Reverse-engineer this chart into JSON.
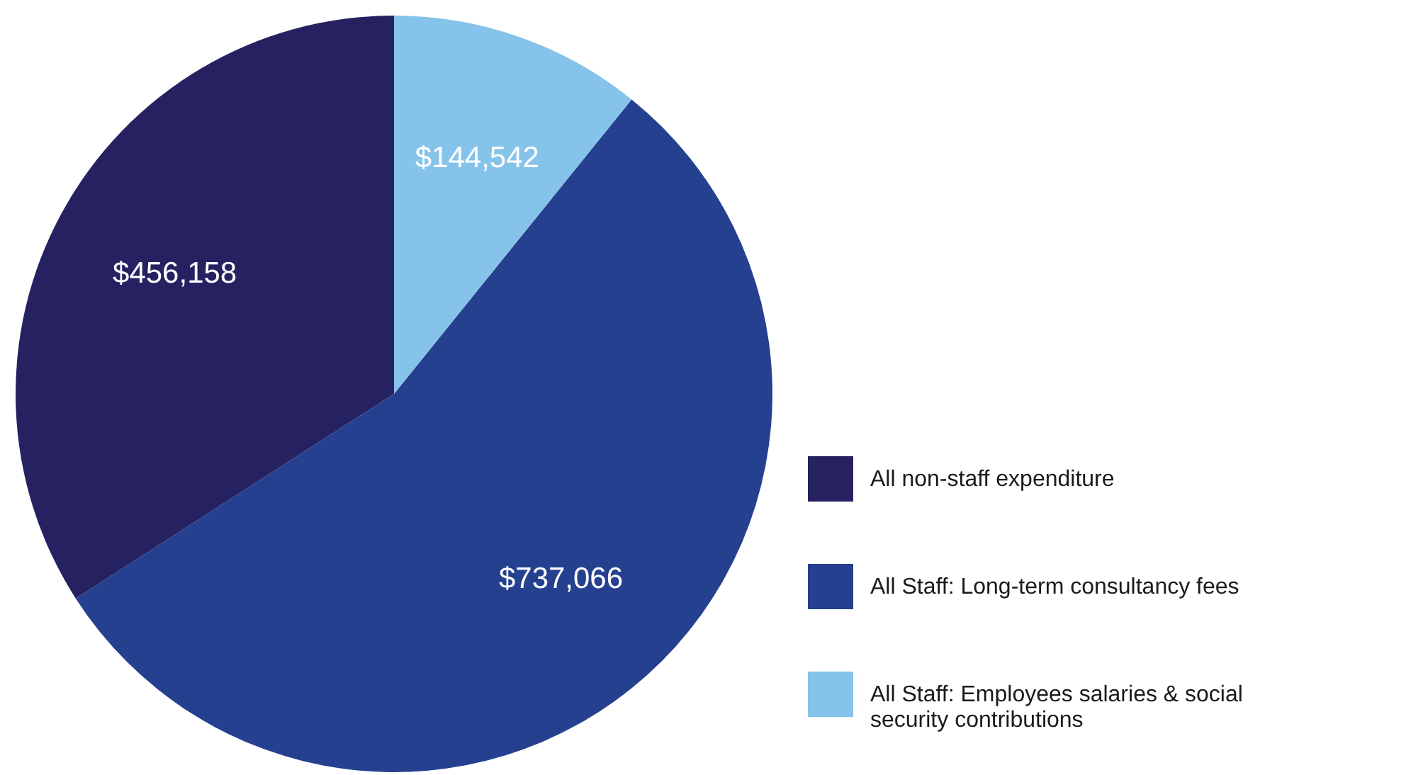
{
  "chart_data": {
    "type": "pie",
    "categories": [
      "All non-staff expenditure",
      "All Staff: Long-term consultancy fees",
      "All Staff: Employees salaries & social security contributions"
    ],
    "values": [
      456158,
      737066,
      144542
    ],
    "colors": [
      "#262262",
      "#25408f",
      "#85c3ea"
    ],
    "value_labels": [
      "$456,158",
      "$737,066",
      "$144,542"
    ],
    "legend": "bottom right"
  }
}
